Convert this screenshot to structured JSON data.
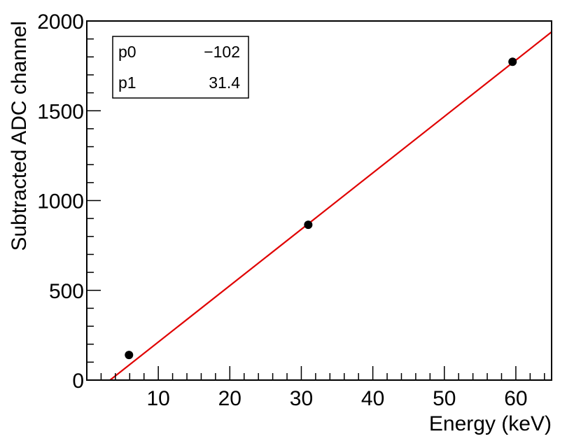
{
  "chart_data": {
    "type": "scatter",
    "title": "",
    "xlabel": "Energy (keV)",
    "ylabel": "Subtracted ADC channel",
    "xlim": [
      0,
      65
    ],
    "ylim": [
      0,
      2000
    ],
    "x_ticks": [
      "10",
      "20",
      "30",
      "40",
      "50",
      "60"
    ],
    "y_ticks": [
      "0",
      "500",
      "1000",
      "1500",
      "2000"
    ],
    "grid": false,
    "series": [
      {
        "x": [
          5.9,
          30.97,
          59.54
        ],
        "y": [
          140,
          865,
          1773
        ],
        "color": "#000000"
      }
    ],
    "fit": {
      "type": "line",
      "color": "#e00000",
      "p0": -102,
      "p1": 31.4
    },
    "stats_box": {
      "rows": [
        {
          "label": "p0",
          "value": "−102"
        },
        {
          "label": "p1",
          "value": "31.4"
        }
      ]
    }
  }
}
